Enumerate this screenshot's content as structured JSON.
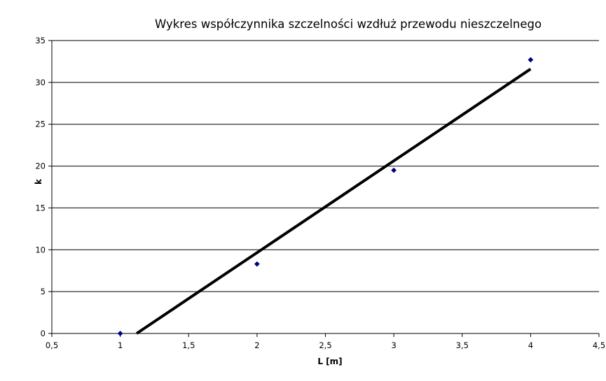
{
  "chart_data": {
    "type": "scatter",
    "title": "Wykres współczynnika szczelności wzdłuż przewodu nieszczelnego",
    "xlabel": "L [m]",
    "ylabel": "k",
    "xlim": [
      0.5,
      4.5
    ],
    "ylim": [
      0,
      35
    ],
    "x_ticks": [
      "0,5",
      "1",
      "1,5",
      "2",
      "2,5",
      "3",
      "3,5",
      "4",
      "4,5"
    ],
    "y_ticks": [
      "0",
      "5",
      "10",
      "15",
      "20",
      "25",
      "30",
      "35"
    ],
    "grid": "horizontal",
    "legend": "none",
    "series": [
      {
        "marker": "diamond",
        "color": "#000080",
        "points": [
          {
            "x": 1,
            "y": 0
          },
          {
            "x": 2,
            "y": 8.3
          },
          {
            "x": 3,
            "y": 19.5
          },
          {
            "x": 4,
            "y": 32.7
          }
        ]
      }
    ],
    "trendline": {
      "type": "linear",
      "color": "#000000",
      "points": [
        {
          "x": 1.12,
          "y": 0
        },
        {
          "x": 4.0,
          "y": 31.6
        }
      ]
    }
  }
}
